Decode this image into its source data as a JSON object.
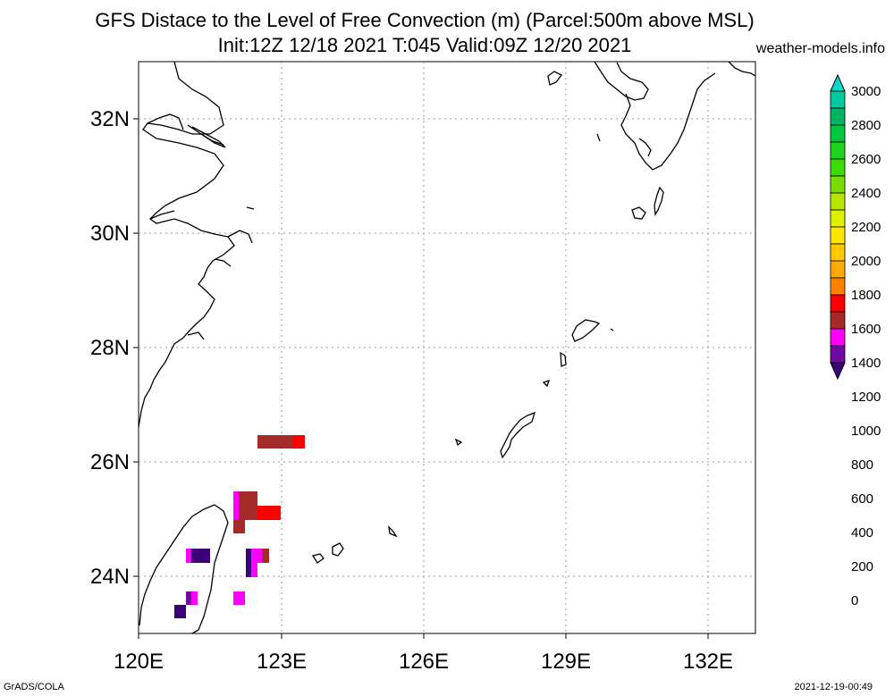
{
  "header": {
    "title_line1": "GFS Distace to the Level of Free Convection (m) (Parcel:500m above MSL)",
    "title_line2": "Init:12Z 12/18 2021 T:045 Valid:09Z 12/20 2021",
    "site": "weather-models.info"
  },
  "map": {
    "lon_ticks": [
      "120E",
      "123E",
      "126E",
      "129E",
      "132E"
    ],
    "lat_ticks": [
      "32N",
      "30N",
      "28N",
      "26N",
      "24N"
    ]
  },
  "colorbar": {
    "labels": [
      "3000",
      "2800",
      "2600",
      "2400",
      "2200",
      "2000",
      "1800",
      "1600",
      "1400",
      "1200",
      "1000",
      "800",
      "600",
      "400",
      "200",
      "0"
    ],
    "colors": [
      "#00dcc8",
      "#00c8a0",
      "#00b464",
      "#00c83c",
      "#1ed21e",
      "#3cdc00",
      "#78dc00",
      "#b4e600",
      "#dcf000",
      "#ffe600",
      "#ffc800",
      "#ffaa00",
      "#ff8200",
      "#ff0000",
      "#a52a2a",
      "#ff00ff",
      "#6e0aa0",
      "#3c0078"
    ]
  },
  "footer": {
    "left": "GrADS/COLA",
    "right": "2021-12-19-00:49"
  }
}
